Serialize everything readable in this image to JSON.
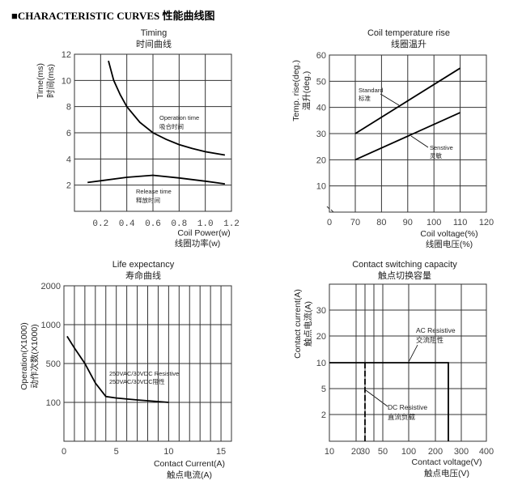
{
  "page_title": "■CHARACTERISTIC CURVES 性能曲线图",
  "chart_data": [
    {
      "type": "line",
      "title": "Timing",
      "title_cn": "时间曲线",
      "xlabel": "Coil Power(w)",
      "xlabel_cn": "线圈功率(w)",
      "ylabel": "Time(ms)",
      "ylabel_cn": "时间(ms)",
      "xlim": [
        0,
        1.2
      ],
      "ylim": [
        0,
        12
      ],
      "xticks": [
        "0.2",
        "0.4",
        "0.6",
        "0.8",
        "1.0",
        "1.2"
      ],
      "xtick_values": [
        0.2,
        0.4,
        0.6,
        0.8,
        1.0,
        1.2
      ],
      "yticks": [
        "12",
        "10",
        "8",
        "6",
        "4",
        "2"
      ],
      "ytick_values": [
        12,
        10,
        8,
        6,
        4,
        2
      ],
      "grid": true,
      "series": [
        {
          "name": "Operation time",
          "name_cn": "吸合时间",
          "x": [
            0.26,
            0.3,
            0.35,
            0.4,
            0.5,
            0.6,
            0.7,
            0.8,
            0.9,
            1.0,
            1.15
          ],
          "y": [
            11.5,
            10.0,
            8.9,
            8.0,
            6.8,
            6.0,
            5.5,
            5.1,
            4.8,
            4.55,
            4.3
          ]
        },
        {
          "name": "Release time",
          "name_cn": "释放时间",
          "x": [
            0.1,
            0.4,
            0.6,
            0.8,
            1.0,
            1.15
          ],
          "y": [
            2.2,
            2.6,
            2.75,
            2.55,
            2.3,
            2.1
          ]
        }
      ]
    },
    {
      "type": "line",
      "title": "Coil temperature rise",
      "title_cn": "线圈温升",
      "xlabel": "Coil voltage(%)",
      "xlabel_cn": "线圈电压(%)",
      "ylabel": "Temp. rise(deg.)",
      "ylabel_cn": "温升(deg.)",
      "xlim": [
        0,
        120
      ],
      "ylim": [
        0,
        60
      ],
      "xticks": [
        "0",
        "70",
        "80",
        "90",
        "100",
        "110",
        "120"
      ],
      "xtick_values": [
        0,
        70,
        80,
        90,
        100,
        110,
        120
      ],
      "yticks": [
        "60",
        "50",
        "40",
        "30",
        "20",
        "10"
      ],
      "ytick_values": [
        60,
        50,
        40,
        30,
        20,
        10
      ],
      "grid": true,
      "series": [
        {
          "name": "Standard",
          "name_cn": "标准",
          "x": [
            70,
            110
          ],
          "y": [
            30,
            55
          ]
        },
        {
          "name": "Senstive",
          "name_cn": "灵敏",
          "x": [
            70,
            110
          ],
          "y": [
            20,
            38
          ]
        }
      ]
    },
    {
      "type": "line",
      "title": "Life expectancy",
      "title_cn": "寿命曲线",
      "xlabel": "Contact Current(A)",
      "xlabel_cn": "触点电流(A)",
      "ylabel": "Operation(X1000)",
      "ylabel_cn": "动作次数(X1000)",
      "xlim": [
        0,
        16
      ],
      "xticks": [
        "0",
        "5",
        "10",
        "15"
      ],
      "xtick_values": [
        0,
        5,
        10,
        15
      ],
      "yticks": [
        "2000",
        "1000",
        "500",
        "100"
      ],
      "ytick_values": [
        2000,
        1000,
        500,
        100
      ],
      "grid": true,
      "series": [
        {
          "name": "250VAC/30VDC Resistive",
          "name_cn": "250VAC/30VDC阻性",
          "x": [
            0.3,
            1,
            2,
            3,
            4,
            5,
            7,
            8,
            10
          ],
          "y": [
            850,
            700,
            500,
            300,
            160,
            145,
            125,
            117,
            100
          ]
        }
      ]
    },
    {
      "type": "line",
      "title": "Contact switching capacity",
      "title_cn": "触点切换容量",
      "xlabel": "Contact voltage(V)",
      "xlabel_cn": "触点电压(V)",
      "ylabel": "Contact current(A)",
      "ylabel_cn": "触点电流(A)",
      "xticks": [
        "10",
        "20",
        "30",
        "50",
        "100",
        "200",
        "300",
        "400"
      ],
      "xtick_values": [
        10,
        20,
        30,
        50,
        100,
        200,
        300,
        400
      ],
      "yticks": [
        "30",
        "20",
        "10",
        "5",
        "2"
      ],
      "ytick_values": [
        30,
        20,
        10,
        5,
        2
      ],
      "grid": true,
      "series": [
        {
          "name": "AC Resistive",
          "name_cn": "交流阻性",
          "x": [
            10,
            250,
            250
          ],
          "y": [
            10,
            10,
            0
          ]
        },
        {
          "name": "DC Resistive",
          "name_cn": "直流负载",
          "x": [
            30,
            30
          ],
          "y": [
            10,
            0
          ],
          "style": "dashed"
        }
      ]
    }
  ]
}
